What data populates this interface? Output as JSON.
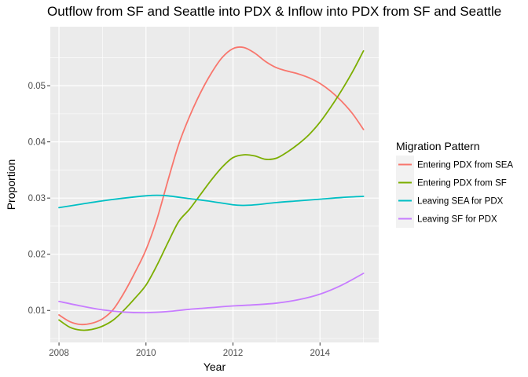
{
  "chart_data": {
    "type": "line",
    "title": "Outflow from SF and Seattle into PDX & Inflow into PDX from SF and Seattle",
    "xlabel": "Year",
    "ylabel": "Proportion",
    "xlim": [
      2007.8,
      2015.35
    ],
    "ylim": [
      0.0043,
      0.0605
    ],
    "x_ticks": [
      2008,
      2010,
      2012,
      2014
    ],
    "x_tick_labels": [
      "2008",
      "2010",
      "2012",
      "2014"
    ],
    "y_ticks": [
      0.01,
      0.02,
      0.03,
      0.04,
      0.05
    ],
    "y_tick_labels": [
      "0.01",
      "0.02",
      "0.03",
      "0.04",
      "0.05"
    ],
    "grid": true,
    "legend": {
      "title": "Migration Pattern",
      "position": "right"
    },
    "series": [
      {
        "name": "Entering PDX from SEA",
        "color": "#F8766D",
        "points": [
          [
            2008,
            0.0092
          ],
          [
            2008.25,
            0.008
          ],
          [
            2008.5,
            0.0075
          ],
          [
            2008.75,
            0.0077
          ],
          [
            2009,
            0.0085
          ],
          [
            2009.25,
            0.0102
          ],
          [
            2009.5,
            0.0132
          ],
          [
            2009.75,
            0.0168
          ],
          [
            2010,
            0.0208
          ],
          [
            2010.25,
            0.0262
          ],
          [
            2010.5,
            0.033
          ],
          [
            2010.75,
            0.0395
          ],
          [
            2011,
            0.0445
          ],
          [
            2011.25,
            0.0487
          ],
          [
            2011.5,
            0.0522
          ],
          [
            2011.75,
            0.055
          ],
          [
            2012,
            0.0566
          ],
          [
            2012.25,
            0.0568
          ],
          [
            2012.5,
            0.0558
          ],
          [
            2012.75,
            0.0543
          ],
          [
            2013,
            0.0532
          ],
          [
            2013.25,
            0.0526
          ],
          [
            2013.5,
            0.0521
          ],
          [
            2013.75,
            0.0514
          ],
          [
            2014,
            0.0504
          ],
          [
            2014.25,
            0.049
          ],
          [
            2014.5,
            0.0472
          ],
          [
            2014.75,
            0.045
          ],
          [
            2015,
            0.0422
          ]
        ]
      },
      {
        "name": "Entering PDX from SF",
        "color": "#7CAE00",
        "points": [
          [
            2008,
            0.0083
          ],
          [
            2008.25,
            0.007
          ],
          [
            2008.5,
            0.0065
          ],
          [
            2008.75,
            0.0066
          ],
          [
            2009,
            0.0072
          ],
          [
            2009.25,
            0.0083
          ],
          [
            2009.5,
            0.0101
          ],
          [
            2009.75,
            0.0122
          ],
          [
            2010,
            0.0145
          ],
          [
            2010.25,
            0.018
          ],
          [
            2010.5,
            0.022
          ],
          [
            2010.75,
            0.0258
          ],
          [
            2011,
            0.028
          ],
          [
            2011.25,
            0.0306
          ],
          [
            2011.5,
            0.0332
          ],
          [
            2011.75,
            0.0355
          ],
          [
            2012,
            0.0372
          ],
          [
            2012.25,
            0.0377
          ],
          [
            2012.5,
            0.0375
          ],
          [
            2012.75,
            0.0369
          ],
          [
            2013,
            0.0371
          ],
          [
            2013.25,
            0.0382
          ],
          [
            2013.5,
            0.0396
          ],
          [
            2013.75,
            0.0413
          ],
          [
            2014,
            0.0435
          ],
          [
            2014.25,
            0.0462
          ],
          [
            2014.5,
            0.0492
          ],
          [
            2014.75,
            0.0525
          ],
          [
            2015,
            0.0562
          ]
        ]
      },
      {
        "name": "Leaving SEA for PDX",
        "color": "#00BFC4",
        "points": [
          [
            2008,
            0.0283
          ],
          [
            2008.5,
            0.0289
          ],
          [
            2009,
            0.0295
          ],
          [
            2009.5,
            0.03
          ],
          [
            2010,
            0.0304
          ],
          [
            2010.25,
            0.0305
          ],
          [
            2010.5,
            0.0304
          ],
          [
            2011,
            0.0299
          ],
          [
            2011.5,
            0.0294
          ],
          [
            2012,
            0.0288
          ],
          [
            2012.25,
            0.0287
          ],
          [
            2012.5,
            0.0288
          ],
          [
            2013,
            0.0292
          ],
          [
            2013.5,
            0.0295
          ],
          [
            2014,
            0.0298
          ],
          [
            2014.5,
            0.0301
          ],
          [
            2015,
            0.0303
          ]
        ]
      },
      {
        "name": "Leaving SF for PDX",
        "color": "#C77CFF",
        "points": [
          [
            2008,
            0.0116
          ],
          [
            2008.5,
            0.0108
          ],
          [
            2009,
            0.0101
          ],
          [
            2009.5,
            0.0097
          ],
          [
            2010,
            0.0096
          ],
          [
            2010.5,
            0.0098
          ],
          [
            2011,
            0.0102
          ],
          [
            2011.5,
            0.0105
          ],
          [
            2012,
            0.0108
          ],
          [
            2012.5,
            0.011
          ],
          [
            2013,
            0.0113
          ],
          [
            2013.5,
            0.0119
          ],
          [
            2014,
            0.0129
          ],
          [
            2014.5,
            0.0145
          ],
          [
            2015,
            0.0166
          ]
        ]
      }
    ]
  }
}
